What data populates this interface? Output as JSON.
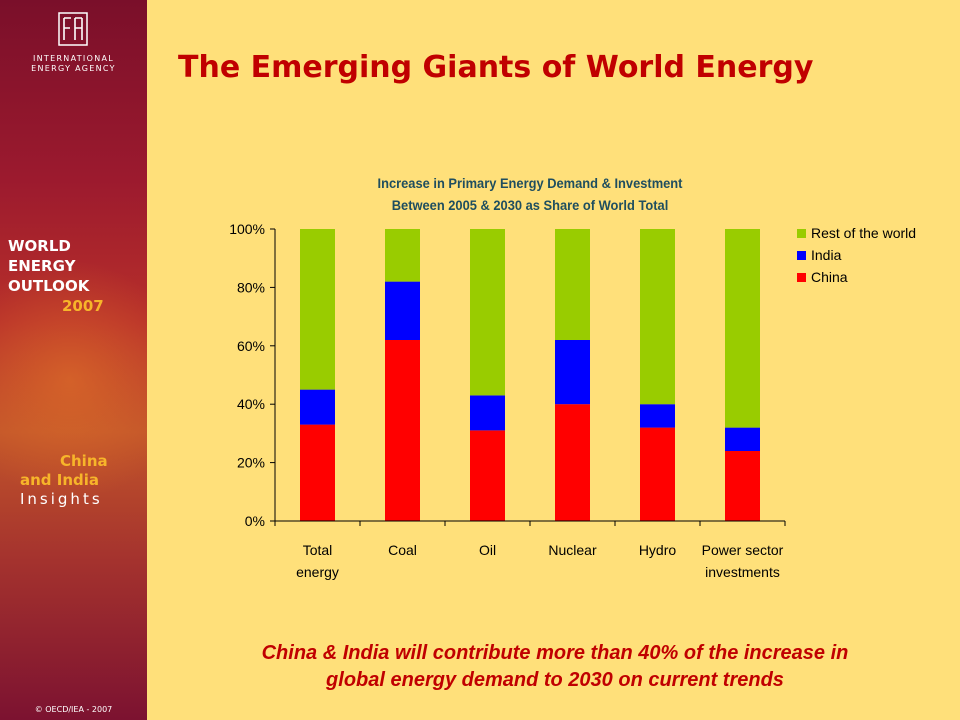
{
  "sidebar": {
    "org_name_line1": "INTERNATIONAL",
    "org_name_line2": "ENERGY AGENCY",
    "weo_line1": "WORLD",
    "weo_line2": "ENERGY",
    "weo_line3": "OUTLOOK",
    "weo_year": "2007",
    "insights_line1": "China",
    "insights_line2": "and India",
    "insights_line3": "Insights",
    "copyright": "© OECD/IEA - 2007"
  },
  "slide": {
    "title": "The Emerging Giants of World Energy"
  },
  "caption": {
    "line1": "China & India will contribute more than 40% of the increase in",
    "line2": "global energy demand to 2030 on current trends"
  },
  "colors": {
    "china": "#ff0000",
    "india": "#0000ff",
    "rest_of_world": "#99cc00",
    "background": "#ffe07a",
    "title": "#c00000"
  },
  "chart_data": {
    "type": "bar",
    "stacked": true,
    "title_line1": "Increase in Primary Energy Demand & Investment",
    "title_line2": "Between 2005 & 2030 as Share of World Total",
    "categories": [
      [
        "Total",
        "energy"
      ],
      [
        "Coal"
      ],
      [
        "Oil"
      ],
      [
        "Nuclear"
      ],
      [
        "Hydro"
      ],
      [
        "Power sector",
        "investments"
      ]
    ],
    "series": [
      {
        "name": "China",
        "color": "#ff0000",
        "values": [
          33,
          62,
          31,
          40,
          32,
          24
        ]
      },
      {
        "name": "India",
        "color": "#0000ff",
        "values": [
          12,
          20,
          12,
          22,
          8,
          8
        ]
      },
      {
        "name": "Rest of the world",
        "color": "#99cc00",
        "values": [
          55,
          18,
          57,
          38,
          60,
          68
        ]
      }
    ],
    "ylim": [
      0,
      100
    ],
    "yticks": [
      "0%",
      "20%",
      "40%",
      "60%",
      "80%",
      "100%"
    ],
    "ytick_values": [
      0,
      20,
      40,
      60,
      80,
      100
    ],
    "legend_order": [
      "Rest of the world",
      "India",
      "China"
    ],
    "legend_position": "right",
    "grid": false
  }
}
